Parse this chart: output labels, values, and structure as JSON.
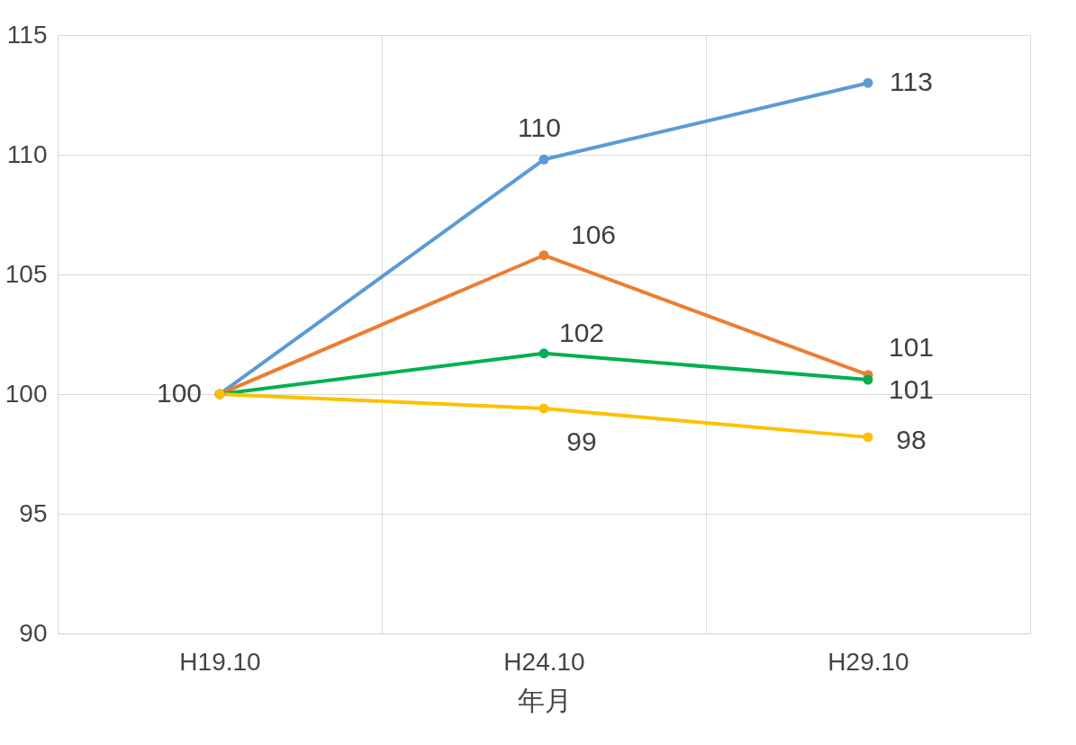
{
  "chart_data": {
    "type": "line",
    "xlabel": "年月",
    "categories": [
      "H19.10",
      "H24.10",
      "H29.10"
    ],
    "series": [
      {
        "color": "#5b9bd5",
        "values": [
          100,
          109.8,
          113
        ],
        "value_labels": [
          null,
          "110",
          "113"
        ]
      },
      {
        "color": "#ed7d31",
        "values": [
          100,
          105.8,
          100.8
        ],
        "value_labels": [
          null,
          "106",
          "101"
        ]
      },
      {
        "color": "#00b050",
        "values": [
          100,
          101.7,
          100.6
        ],
        "value_labels": [
          null,
          "102",
          "101"
        ]
      },
      {
        "color": "#ffc000",
        "values": [
          100,
          99.4,
          98.2
        ],
        "value_labels": [
          "100",
          "99",
          "98"
        ]
      }
    ],
    "ylim": [
      90,
      115
    ],
    "yticks": [
      90,
      95,
      100,
      105,
      110,
      115
    ],
    "grid": true,
    "marker": "circle",
    "line_style": "solid",
    "legend": false
  }
}
